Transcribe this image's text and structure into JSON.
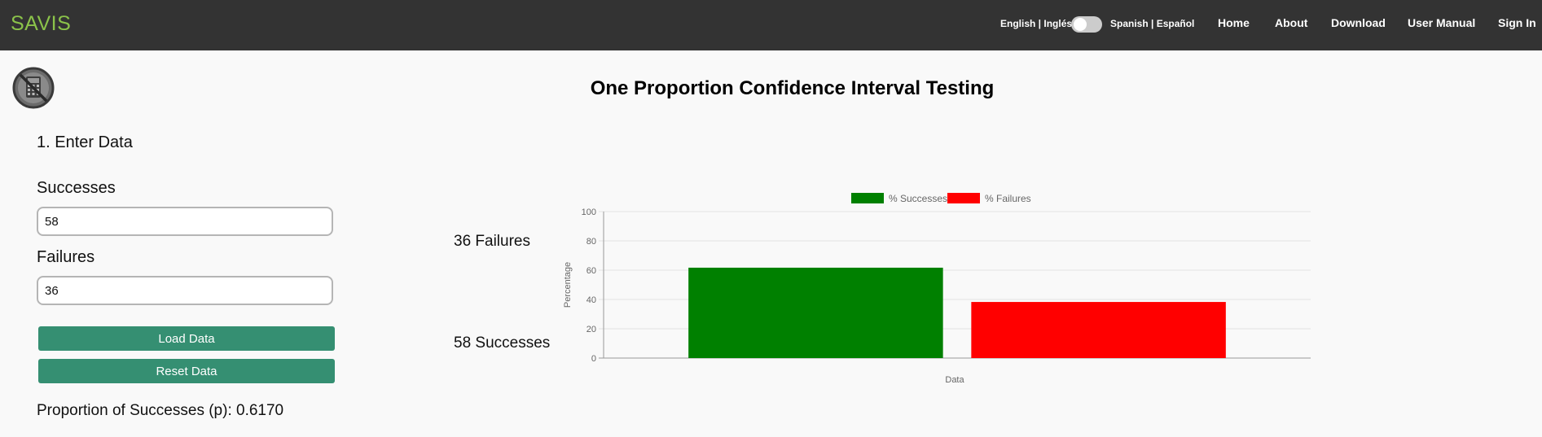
{
  "navbar": {
    "brand": "SAVIS",
    "lang_english": "English | Inglés",
    "lang_spanish": "Spanish | Español",
    "links": [
      "Home",
      "About",
      "Download",
      "User Manual",
      "Sign In"
    ]
  },
  "page": {
    "title": "One Proportion Confidence Interval Testing",
    "section_title": "1. Enter Data"
  },
  "form": {
    "successes_label": "Successes",
    "successes_value": "58",
    "failures_label": "Failures",
    "failures_value": "36",
    "load_button": "Load Data",
    "reset_button": "Reset Data"
  },
  "results": {
    "proportion_label": "Proportion of Successes (p):",
    "proportion_value": "0.6170",
    "failures_text": "36 Failures",
    "successes_text": "58 Successes"
  },
  "colors": {
    "navbar_bg": "#333333",
    "brand": "#8bc34a",
    "button": "#358f72",
    "success_bar": "#008000",
    "failure_bar": "#ff0000"
  },
  "chart_data": {
    "type": "bar",
    "categories": [
      "Data"
    ],
    "series": [
      {
        "name": "% Successes",
        "values": [
          61.7
        ],
        "color": "#008000"
      },
      {
        "name": "% Failures",
        "values": [
          38.3
        ],
        "color": "#ff0000"
      }
    ],
    "xlabel": "Data",
    "ylabel": "Percentage",
    "ylim": [
      0,
      100
    ],
    "yticks": [
      0,
      20,
      40,
      60,
      80,
      100
    ],
    "grid": true,
    "legend": "top-center"
  }
}
